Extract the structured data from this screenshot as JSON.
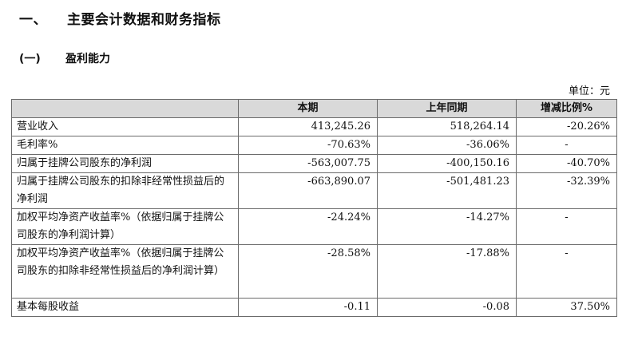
{
  "heading": {
    "number": "一、",
    "title": "主要会计数据和财务指标"
  },
  "subheading": {
    "number": "(一)",
    "title": "盈利能力"
  },
  "unit_label": "单位：元",
  "table": {
    "headers": [
      "",
      "本期",
      "上年同期",
      "增减比例%"
    ],
    "rows": [
      {
        "label": "营业收入",
        "current": "413,245.26",
        "previous": "518,264.14",
        "change": "-20.26%"
      },
      {
        "label": "毛利率%",
        "current": "-70.63%",
        "previous": "-36.06%",
        "change": "-"
      },
      {
        "label": "归属于挂牌公司股东的净利润",
        "current": "-563,007.75",
        "previous": "-400,150.16",
        "change": "-40.70%"
      },
      {
        "label": "归属于挂牌公司股东的扣除非经常性损益后的净利润",
        "current": "-663,890.07",
        "previous": "-501,481.23",
        "change": "-32.39%"
      },
      {
        "label": "加权平均净资产收益率%（依据归属于挂牌公司股东的净利润计算）",
        "current": "-24.24%",
        "previous": "-14.27%",
        "change": "-"
      },
      {
        "label": "加权平均净资产收益率%（依据归属于挂牌公司股东的扣除非经常性损益后的净利润计算）",
        "current": "-28.58%",
        "previous": "-17.88%",
        "change": "-"
      },
      {
        "label": "基本每股收益",
        "current": "-0.11",
        "previous": "-0.08",
        "change": "37.50%"
      }
    ]
  }
}
